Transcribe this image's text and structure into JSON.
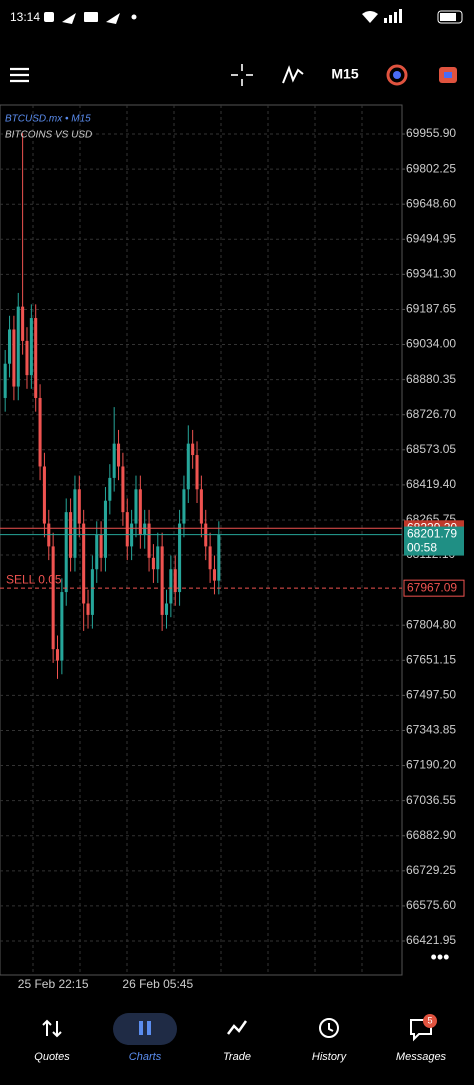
{
  "status_bar": {
    "time": "13:14"
  },
  "toolbar": {
    "timeframe": "M15"
  },
  "chart_data": {
    "type": "candlestick",
    "symbol": "BTCUSD.mx • M15",
    "description": "BITCOINS VS USD",
    "categories": [
      null,
      null,
      null,
      null,
      null,
      null,
      null,
      null,
      null,
      null,
      null,
      "25 Feb 22:15",
      null,
      null,
      null,
      null,
      null,
      null,
      null,
      null,
      null,
      null,
      null,
      null,
      null,
      null,
      null,
      null,
      null,
      null,
      null,
      null,
      null,
      null,
      null,
      "26 Feb 05:45",
      null,
      null,
      null,
      null,
      null,
      null,
      null,
      null,
      null,
      null,
      null,
      null,
      null,
      null
    ],
    "open": [
      68800,
      68950,
      69100,
      68850,
      69200,
      69050,
      68900,
      69150,
      68800,
      68500,
      68250,
      68150,
      67700,
      67650,
      67950,
      68300,
      68100,
      68400,
      68250,
      67900,
      67850,
      68050,
      68200,
      68100,
      68350,
      68450,
      68600,
      68500,
      68300,
      68150,
      68250,
      68400,
      68200,
      68250,
      68100,
      68050,
      68150,
      67850,
      67900,
      68050,
      67950,
      68250,
      68400,
      68600,
      68550,
      68400,
      68250,
      68150,
      68050,
      68000
    ],
    "high": [
      69010,
      69160,
      69160,
      69260,
      69960,
      69110,
      69210,
      69210,
      68860,
      68560,
      68310,
      68210,
      67760,
      68010,
      68360,
      68360,
      68460,
      68460,
      68310,
      67960,
      68110,
      68260,
      68260,
      68410,
      68510,
      68760,
      68660,
      68560,
      68360,
      68310,
      68460,
      68460,
      68310,
      68310,
      68160,
      68210,
      68210,
      67960,
      68110,
      68110,
      68310,
      68460,
      68680,
      68660,
      68610,
      68460,
      68310,
      68210,
      68110,
      68260
    ],
    "low": [
      68740,
      68890,
      68790,
      68790,
      68990,
      68840,
      68840,
      68740,
      68440,
      68190,
      68090,
      67640,
      67570,
      67590,
      67890,
      68040,
      68040,
      68190,
      67780,
      67790,
      67790,
      67990,
      68040,
      68040,
      68290,
      68390,
      68440,
      68240,
      68090,
      68090,
      68190,
      68140,
      68140,
      68040,
      67990,
      67990,
      67780,
      67790,
      67840,
      67890,
      67890,
      68190,
      68340,
      68490,
      68340,
      68190,
      68090,
      67990,
      67940,
      67940
    ],
    "close": [
      68950,
      69100,
      68850,
      69200,
      69050,
      68900,
      69150,
      68800,
      68500,
      68250,
      68150,
      67700,
      67650,
      67950,
      68300,
      68100,
      68400,
      68250,
      67900,
      67850,
      68050,
      68200,
      68100,
      68350,
      68450,
      68600,
      68500,
      68300,
      68150,
      68250,
      68400,
      68200,
      68250,
      68100,
      68050,
      68150,
      67850,
      67900,
      68050,
      67950,
      68250,
      68400,
      68600,
      68550,
      68400,
      68250,
      68150,
      68050,
      68000,
      68200
    ],
    "up_color": "#26a69a",
    "down_color": "#ef5350",
    "ylim": [
      66273,
      70083
    ],
    "yticks": [
      {
        "value": 69955.9,
        "label": "69955.90"
      },
      {
        "value": 69802.25,
        "label": "69802.25"
      },
      {
        "value": 69648.6,
        "label": "69648.60"
      },
      {
        "value": 69494.95,
        "label": "69494.95"
      },
      {
        "value": 69341.3,
        "label": "69341.30"
      },
      {
        "value": 69187.65,
        "label": "69187.65"
      },
      {
        "value": 69034,
        "label": "69034.00"
      },
      {
        "value": 68880.35,
        "label": "68880.35"
      },
      {
        "value": 68726.7,
        "label": "68726.70"
      },
      {
        "value": 68573.05,
        "label": "68573.05"
      },
      {
        "value": 68419.4,
        "label": "68419.40"
      },
      {
        "value": 68265.75,
        "label": "68265.75"
      },
      {
        "value": 68112.1,
        "label": "68112.10"
      },
      {
        "value": 67804.8,
        "label": "67804.80"
      },
      {
        "value": 67651.15,
        "label": "67651.15"
      },
      {
        "value": 67497.5,
        "label": "67497.50"
      },
      {
        "value": 67343.85,
        "label": "67343.85"
      },
      {
        "value": 67190.2,
        "label": "67190.20"
      },
      {
        "value": 67036.55,
        "label": "67036.55"
      },
      {
        "value": 66882.9,
        "label": "66882.90"
      },
      {
        "value": 66729.25,
        "label": "66729.25"
      },
      {
        "value": 66575.6,
        "label": "66575.60"
      },
      {
        "value": 66421.95,
        "label": "66421.95"
      }
    ],
    "grid": true,
    "ask": {
      "value": 68229.2,
      "label": "68229.20"
    },
    "bid": {
      "value": 68201.79,
      "timer": "00:58"
    },
    "position": {
      "label": "SELL 0.05",
      "value": 67967.09
    }
  },
  "nav": {
    "items": [
      "Quotes",
      "Charts",
      "Trade",
      "History",
      "Messages"
    ],
    "active": 1,
    "badge": "5"
  }
}
